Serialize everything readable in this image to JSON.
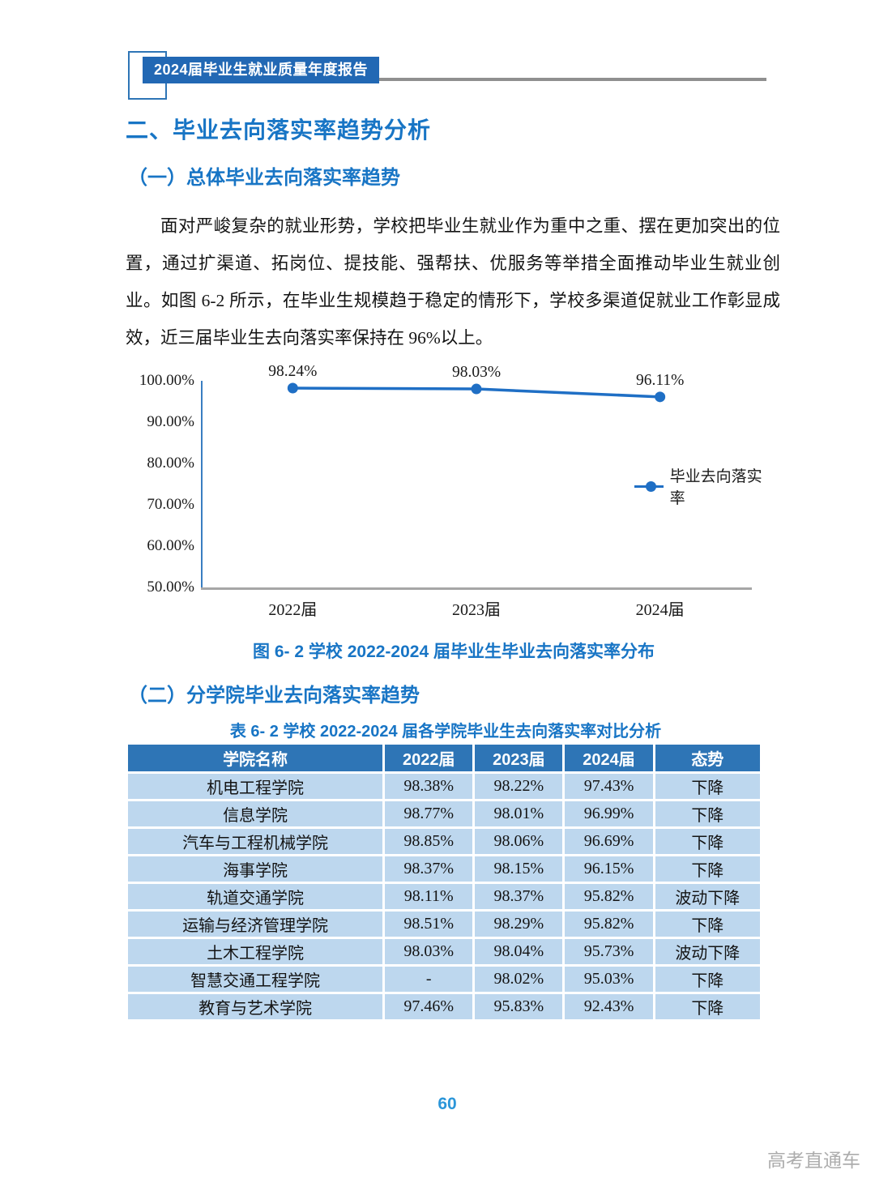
{
  "header": {
    "badge_label": "2024届毕业生就业质量年度报告"
  },
  "section1": {
    "title": "二、毕业去向落实率趋势分析",
    "subtitle": "（一）总体毕业去向落实率趋势",
    "paragraph": "面对严峻复杂的就业形势，学校把毕业生就业作为重中之重、摆在更加突出的位置，通过扩渠道、拓岗位、提技能、强帮扶、优服务等举措全面推动毕业生就业创业。如图 6-2 所示，在毕业生规模趋于稳定的情形下，学校多渠道促就业工作彰显成效，近三届毕业生去向落实率保持在 96%以上。"
  },
  "chart_data": {
    "type": "line",
    "categories": [
      "2022届",
      "2023届",
      "2024届"
    ],
    "values": [
      98.24,
      98.03,
      96.11
    ],
    "data_labels": [
      "98.24%",
      "98.03%",
      "96.11%"
    ],
    "y_ticks": [
      "100.00%",
      "90.00%",
      "80.00%",
      "70.00%",
      "60.00%",
      "50.00%"
    ],
    "ylim": [
      50,
      100
    ],
    "legend": "毕业去向落实率",
    "legend_position": "right",
    "grid": false,
    "line_color": "#1F6FC5",
    "title": "",
    "xlabel": "",
    "ylabel": "",
    "caption": "图 6- 2 学校 2022-2024 届毕业生毕业去向落实率分布"
  },
  "section2": {
    "title": "（二）分学院毕业去向落实率趋势",
    "table_caption": "表 6- 2 学校 2022-2024 届各学院毕业生去向落实率对比分析"
  },
  "table": {
    "headers": [
      "学院名称",
      "2022届",
      "2023届",
      "2024届",
      "态势"
    ],
    "rows": [
      [
        "机电工程学院",
        "98.38%",
        "98.22%",
        "97.43%",
        "下降"
      ],
      [
        "信息学院",
        "98.77%",
        "98.01%",
        "96.99%",
        "下降"
      ],
      [
        "汽车与工程机械学院",
        "98.85%",
        "98.06%",
        "96.69%",
        "下降"
      ],
      [
        "海事学院",
        "98.37%",
        "98.15%",
        "96.15%",
        "下降"
      ],
      [
        "轨道交通学院",
        "98.11%",
        "98.37%",
        "95.82%",
        "波动下降"
      ],
      [
        "运输与经济管理学院",
        "98.51%",
        "98.29%",
        "95.82%",
        "下降"
      ],
      [
        "土木工程学院",
        "98.03%",
        "98.04%",
        "95.73%",
        "波动下降"
      ],
      [
        "智慧交通工程学院",
        "-",
        "98.02%",
        "95.03%",
        "下降"
      ],
      [
        "教育与艺术学院",
        "97.46%",
        "95.83%",
        "92.43%",
        "下降"
      ]
    ]
  },
  "footer": {
    "page_number": "60",
    "watermark": "高考直通车"
  },
  "colors": {
    "heading_blue": "#1875C5",
    "badge_blue": "#2268B4",
    "table_header_blue": "#2E75B6",
    "table_row_blue": "#BDD7EE",
    "chart_line_blue": "#1F6FC5",
    "page_number_blue": "#2B96D9",
    "rule_gray": "#8F8F8F"
  }
}
